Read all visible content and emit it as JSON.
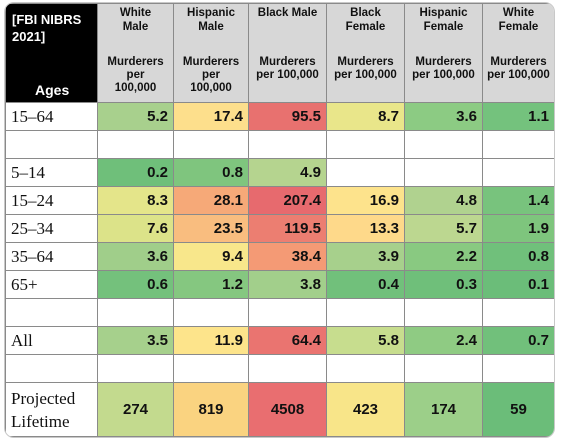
{
  "header": {
    "corner_line1": "[FBI NIBRS",
    "corner_line2": "2021]",
    "corner_ages": "Ages",
    "columns": [
      {
        "group": "White\nMale",
        "sub": "Murderers\nper\n100,000"
      },
      {
        "group": "Hispanic\nMale",
        "sub": "Murderers\nper\n100,000"
      },
      {
        "group": "Black Male",
        "sub": "Murderers\nper 100,000"
      },
      {
        "group": "Black\nFemale",
        "sub": "Murderers\nper 100,000"
      },
      {
        "group": "Hispanic\nFemale",
        "sub": "Murderers\nper 100,000"
      },
      {
        "group": "White\nFemale",
        "sub": "Murderers\nper 100,000"
      }
    ]
  },
  "rows": [
    {
      "type": "data",
      "age": "15–64",
      "values": [
        "5.2",
        "17.4",
        "95.5",
        "8.7",
        "3.6",
        "1.1"
      ],
      "colors": [
        "#a8d08d",
        "#fddf8c",
        "#e8716f",
        "#e9e68a",
        "#8ccb83",
        "#74c27d"
      ]
    },
    {
      "type": "blank"
    },
    {
      "type": "data",
      "age": "5–14",
      "values": [
        "0.2",
        "0.8",
        "4.9",
        "",
        "",
        ""
      ],
      "colors": [
        "#6fbf7a",
        "#7fc57e",
        "#b5d48f",
        "#ffffff",
        "#ffffff",
        "#ffffff"
      ]
    },
    {
      "type": "data",
      "age": "15–24",
      "values": [
        "8.3",
        "28.1",
        "207.4",
        "16.9",
        "4.8",
        "1.4"
      ],
      "colors": [
        "#e4e58a",
        "#f6a978",
        "#e76a6e",
        "#fde38c",
        "#b0d28f",
        "#78c37d"
      ]
    },
    {
      "type": "data",
      "age": "25–34",
      "values": [
        "7.6",
        "23.5",
        "119.5",
        "13.3",
        "5.7",
        "1.9"
      ],
      "colors": [
        "#dce389",
        "#f9bd7f",
        "#ec7e71",
        "#fed98a",
        "#bcd790",
        "#7ec57d"
      ]
    },
    {
      "type": "data",
      "age": "35–64",
      "values": [
        "3.6",
        "9.4",
        "38.4",
        "3.9",
        "2.2",
        "0.8"
      ],
      "colors": [
        "#a0ce8a",
        "#f8e78b",
        "#f49a75",
        "#a7d08c",
        "#89c981",
        "#70c07b"
      ]
    },
    {
      "type": "data",
      "age": "65+",
      "values": [
        "0.6",
        "1.2",
        "3.8",
        "0.4",
        "0.3",
        "0.1"
      ],
      "colors": [
        "#74c17c",
        "#85c780",
        "#a2cf8b",
        "#71c07b",
        "#6fbf7a",
        "#6bbd79"
      ]
    },
    {
      "type": "blank"
    },
    {
      "type": "data",
      "age": "All",
      "values": [
        "3.5",
        "11.9",
        "64.4",
        "5.8",
        "2.4",
        "0.7"
      ],
      "colors": [
        "#a6d08c",
        "#fde48b",
        "#ea7470",
        "#c7dd8e",
        "#8fcb83",
        "#71c07b"
      ]
    },
    {
      "type": "blank"
    },
    {
      "type": "life",
      "age_line1": "Projected",
      "age_line2": "Lifetime",
      "values": [
        "274",
        "819",
        "4508",
        "423",
        "174",
        "59"
      ],
      "colors": [
        "#c3da8e",
        "#fad380",
        "#e96e70",
        "#f8e589",
        "#9ccf89",
        "#6bbd79"
      ]
    }
  ]
}
